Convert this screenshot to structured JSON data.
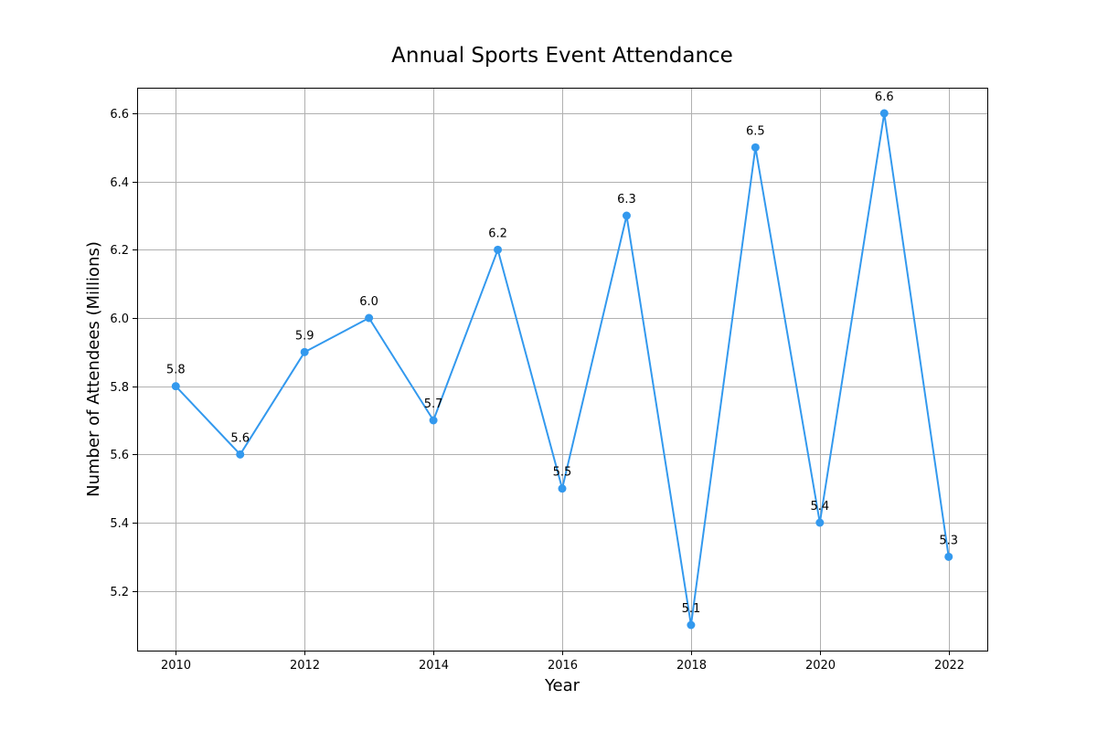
{
  "chart_data": {
    "type": "line",
    "title": "Annual Sports Event Attendance",
    "xlabel": "Year",
    "ylabel": "Number of Attendees (Millions)",
    "x": [
      2010,
      2011,
      2012,
      2013,
      2014,
      2015,
      2016,
      2017,
      2018,
      2019,
      2020,
      2021,
      2022
    ],
    "series": [
      {
        "values": [
          5.8,
          5.6,
          5.9,
          6.0,
          5.7,
          6.2,
          5.5,
          6.3,
          5.1,
          6.5,
          5.4,
          6.6,
          5.3
        ],
        "color": "#3399ee",
        "marker": "circle"
      }
    ],
    "data_labels": [
      "5.8",
      "5.6",
      "5.9",
      "6.0",
      "5.7",
      "6.2",
      "5.5",
      "6.3",
      "5.1",
      "6.5",
      "5.4",
      "6.6",
      "5.3"
    ],
    "xlim": [
      2009.4,
      2022.6
    ],
    "ylim": [
      5.025,
      6.675
    ],
    "xticks": [
      2010,
      2012,
      2014,
      2016,
      2018,
      2020,
      2022
    ],
    "xtick_labels": [
      "2010",
      "2012",
      "2014",
      "2016",
      "2018",
      "2020",
      "2022"
    ],
    "yticks": [
      5.2,
      5.4,
      5.6,
      5.8,
      6.0,
      6.2,
      6.4,
      6.6
    ],
    "ytick_labels": [
      "5.2",
      "5.4",
      "5.6",
      "5.8",
      "6.0",
      "6.2",
      "6.4",
      "6.6"
    ],
    "grid": true,
    "legend": false
  }
}
